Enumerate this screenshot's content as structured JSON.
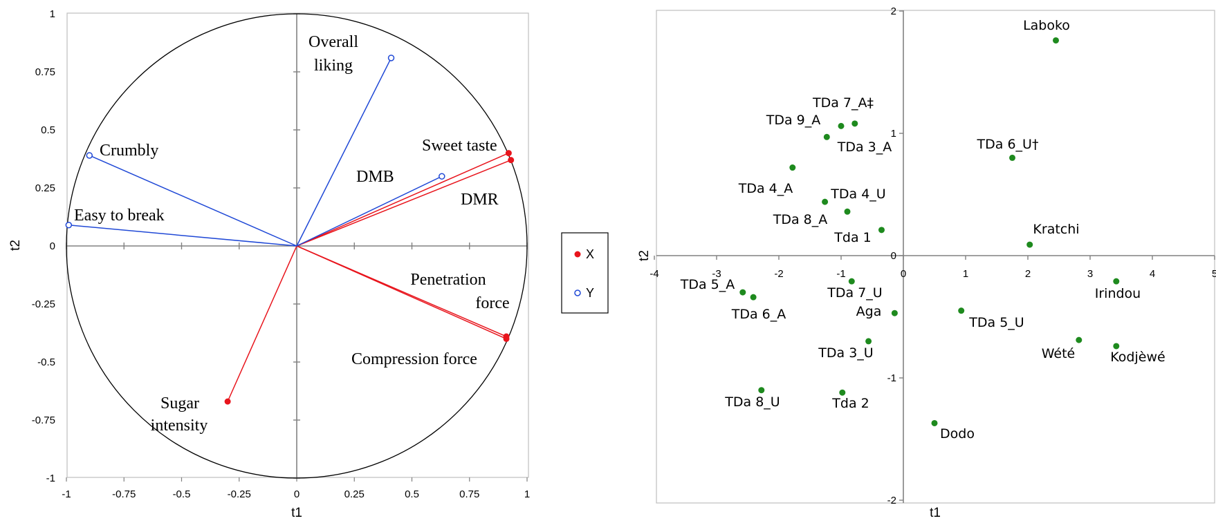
{
  "chart_data": [
    {
      "type": "scatter",
      "subtype": "correlation-circle",
      "xlabel": "t1",
      "ylabel": "t2",
      "xlim": [
        -1,
        1
      ],
      "ylim": [
        -1,
        1
      ],
      "xticks": [
        "-1",
        "-0.75",
        "-0.5",
        "-0.25",
        "0",
        "0.25",
        "0.5",
        "0.75",
        "1"
      ],
      "yticks": [
        "-1",
        "-0.75",
        "-0.5",
        "-0.25",
        "0",
        "0.25",
        "0.5",
        "0.75",
        "1"
      ],
      "grid": false,
      "legend": {
        "placement": "right",
        "entries": [
          {
            "name": "X",
            "color": "#e8141c",
            "marker": "filled-circle"
          },
          {
            "name": "Y",
            "color": "#1f48d6",
            "marker": "open-circle"
          }
        ]
      },
      "series": [
        {
          "name": "X",
          "color": "#e8141c",
          "points": [
            {
              "label": "Sweet taste",
              "x": 0.92,
              "y": 0.4
            },
            {
              "label": "DMR",
              "x": 0.93,
              "y": 0.37
            },
            {
              "label": "Penetration force",
              "x": 0.91,
              "y": -0.39
            },
            {
              "label": "Compression force",
              "x": 0.91,
              "y": -0.4
            },
            {
              "label": "Sugar intensity",
              "x": -0.3,
              "y": -0.67
            }
          ]
        },
        {
          "name": "Y",
          "color": "#1f48d6",
          "points": [
            {
              "label": "Overall liking",
              "x": 0.41,
              "y": 0.81
            },
            {
              "label": "DMB",
              "x": 0.63,
              "y": 0.3
            },
            {
              "label": "Crumbly",
              "x": -0.9,
              "y": 0.39
            },
            {
              "label": "Easy to break",
              "x": -0.99,
              "y": 0.09
            }
          ]
        }
      ]
    },
    {
      "type": "scatter",
      "xlabel": "t1",
      "ylabel": "t2",
      "xlim": [
        -4,
        5
      ],
      "ylim": [
        -2,
        2
      ],
      "xticks": [
        "-4",
        "-3",
        "-2",
        "-1",
        "0",
        "1",
        "2",
        "3",
        "4",
        "5"
      ],
      "yticks": [
        "-2",
        "-1",
        "0",
        "1",
        "2"
      ],
      "grid": false,
      "series": [
        {
          "color": "#1e8a1e",
          "points": [
            {
              "label": "Laboko",
              "x": 2.45,
              "y": 1.76
            },
            {
              "label": "TDa 7_A‡",
              "x": -0.78,
              "y": 1.08
            },
            {
              "label": "TDa 9_A",
              "x": -1.0,
              "y": 1.06
            },
            {
              "label": "TDa 3_A",
              "x": -1.23,
              "y": 0.97
            },
            {
              "label": "TDa 6_U†",
              "x": 1.75,
              "y": 0.8
            },
            {
              "label": "TDa 4_A",
              "x": -1.78,
              "y": 0.72
            },
            {
              "label": "TDa 4_U",
              "x": -1.26,
              "y": 0.44
            },
            {
              "label": "TDa 8_A",
              "x": -0.9,
              "y": 0.36
            },
            {
              "label": "Tda 1",
              "x": -0.35,
              "y": 0.21
            },
            {
              "label": "Kratchi",
              "x": 2.03,
              "y": 0.09
            },
            {
              "label": "Irindou",
              "x": 3.42,
              "y": -0.21
            },
            {
              "label": "TDa 7_U",
              "x": -0.83,
              "y": -0.21
            },
            {
              "label": "TDa 5_A",
              "x": -2.58,
              "y": -0.3
            },
            {
              "label": "TDa 6_A",
              "x": -2.41,
              "y": -0.34
            },
            {
              "label": "Aga",
              "x": -0.14,
              "y": -0.47
            },
            {
              "label": "TDa 5_U",
              "x": 0.93,
              "y": -0.45
            },
            {
              "label": "TDa 3_U",
              "x": -0.56,
              "y": -0.7
            },
            {
              "label": "Wété",
              "x": 2.82,
              "y": -0.69
            },
            {
              "label": "Kodjèwé",
              "x": 3.42,
              "y": -0.74
            },
            {
              "label": "TDa 8_U",
              "x": -2.28,
              "y": -1.1
            },
            {
              "label": "Tda 2",
              "x": -0.98,
              "y": -1.12
            },
            {
              "label": "Dodo",
              "x": 0.5,
              "y": -1.37
            }
          ]
        }
      ]
    }
  ]
}
